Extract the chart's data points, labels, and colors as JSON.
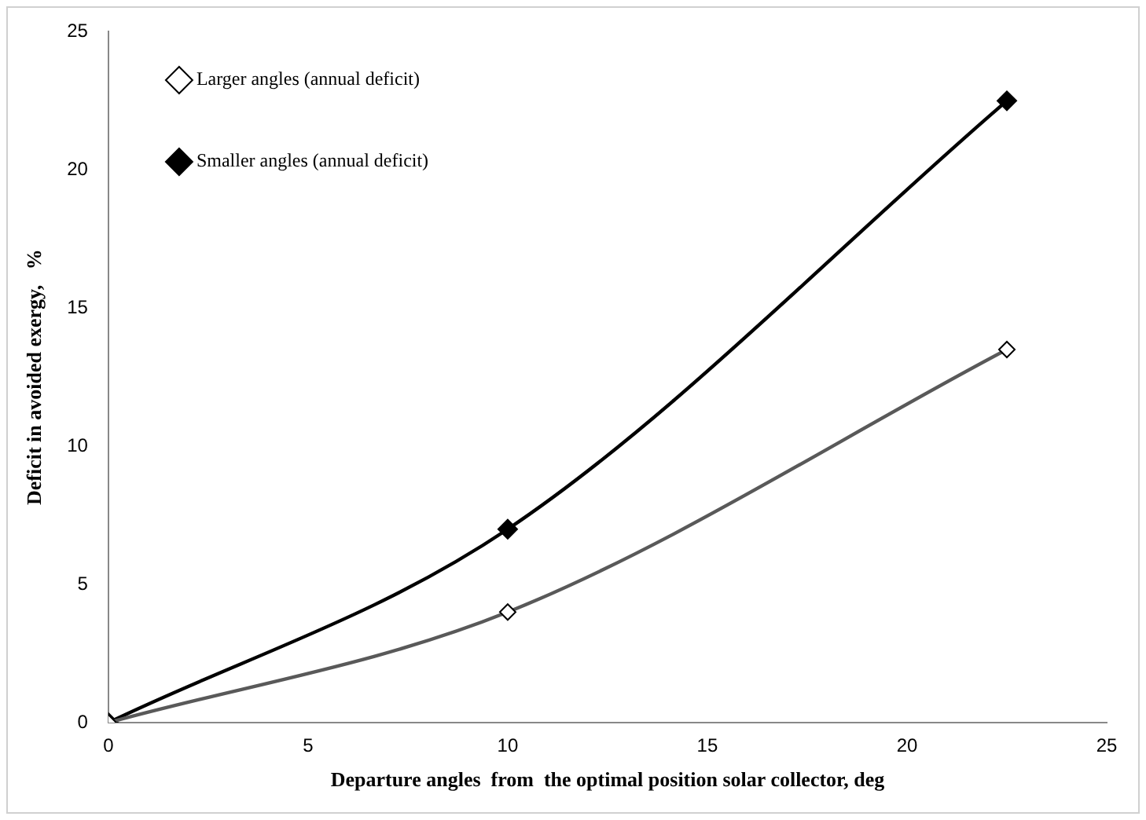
{
  "chart_data": {
    "type": "line",
    "xlabel": "Departure angles  from  the optimal position solar collector, deg",
    "ylabel": "Deficit in avoided exergy,   %",
    "xlim": [
      0,
      25
    ],
    "xticks": [
      0,
      5,
      10,
      15,
      20,
      25
    ],
    "ylim": [
      0,
      25
    ],
    "yticks": [
      0,
      5,
      10,
      15,
      20,
      25
    ],
    "grid": false,
    "legend": "top left",
    "marker": "diamond",
    "line_style": "solid",
    "series": [
      {
        "name": "Larger angles (annual deficit)",
        "color": "#595959",
        "x": [
          0,
          10,
          22.5
        ],
        "values": [
          0,
          4,
          13.5
        ]
      },
      {
        "name": "Smaller angles (annual deficit)",
        "color": "#000000",
        "x": [
          0,
          10,
          22.5
        ],
        "values": [
          0,
          7,
          22.5
        ]
      }
    ]
  }
}
